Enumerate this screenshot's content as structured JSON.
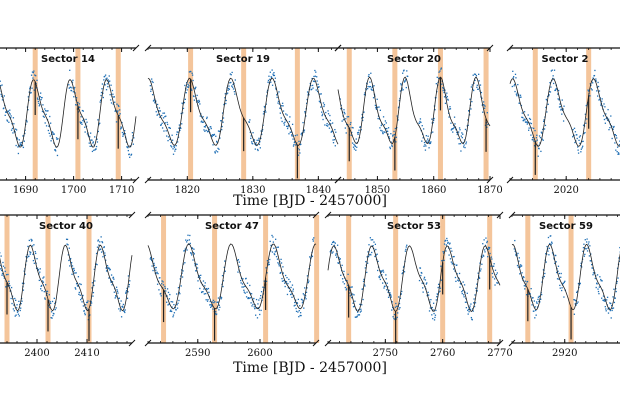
{
  "chart_data": {
    "type": "scatter",
    "description_series": [
      {
        "name": "",
        "color": "#1f6fb5"
      },
      {
        "name": "",
        "color": "#222222"
      }
    ],
    "highlight_color": "#f0b27a",
    "rows": [
      {
        "xlabel": "Time [BJD - 2457000]",
        "panels": [
          {
            "sector_label": "Sector 14",
            "xlim": [
              1683,
              1713
            ],
            "ticks": [
              1690,
              1700,
              1710
            ],
            "transits": [
              1692.0,
              1700.9,
              1709.3
            ],
            "period": 7.6,
            "phase": 0.3
          },
          {
            "sector_label": "Sector 19",
            "xlim": [
              1814,
              1843
            ],
            "ticks": [
              1820,
              1830,
              1840
            ],
            "transits": [
              1820.5,
              1828.6,
              1836.8
            ],
            "period": 6.3,
            "phase": 1.2
          },
          {
            "sector_label": "Sector 20",
            "xlim": [
              1843,
              1870
            ],
            "ticks": [
              1850,
              1860,
              1870
            ],
            "transits": [
              1845.0,
              1853.1,
              1861.2,
              1869.3
            ],
            "period": 6.3,
            "phase": 2.0
          },
          {
            "sector_label": "Sector 2",
            "xlim": [
              2010,
              2031
            ],
            "ticks": [
              2020
            ],
            "transits": [
              2014.5,
              2024.0
            ],
            "period": 7.2,
            "phase": 0.8
          }
        ]
      },
      {
        "xlabel": "Time [BJD - 2457000]",
        "panels": [
          {
            "sector_label": "Sector 40",
            "xlim": [
              2391,
              2419
            ],
            "ticks": [
              2400,
              2410
            ],
            "transits": [
              2394.0,
              2402.2,
              2410.4
            ],
            "period": 7.0,
            "phase": 0.6
          },
          {
            "sector_label": "Sector 47",
            "xlim": [
              2582,
              2609
            ],
            "ticks": [
              2590,
              2600
            ],
            "transits": [
              2584.5,
              2592.7,
              2600.9,
              2609.1
            ],
            "period": 6.8,
            "phase": 1.5
          },
          {
            "sector_label": "Sector 53",
            "xlim": [
              2740,
              2770
            ],
            "ticks": [
              2750,
              2760,
              2770
            ],
            "transits": [
              2743.6,
              2751.8,
              2760.0,
              2768.2
            ],
            "period": 6.6,
            "phase": 0.2
          },
          {
            "sector_label": "Sector 59",
            "xlim": [
              2910,
              2932
            ],
            "ticks": [
              2920
            ],
            "transits": [
              2913.0,
              2921.2
            ],
            "period": 7.0,
            "phase": 1.1
          }
        ]
      }
    ]
  }
}
